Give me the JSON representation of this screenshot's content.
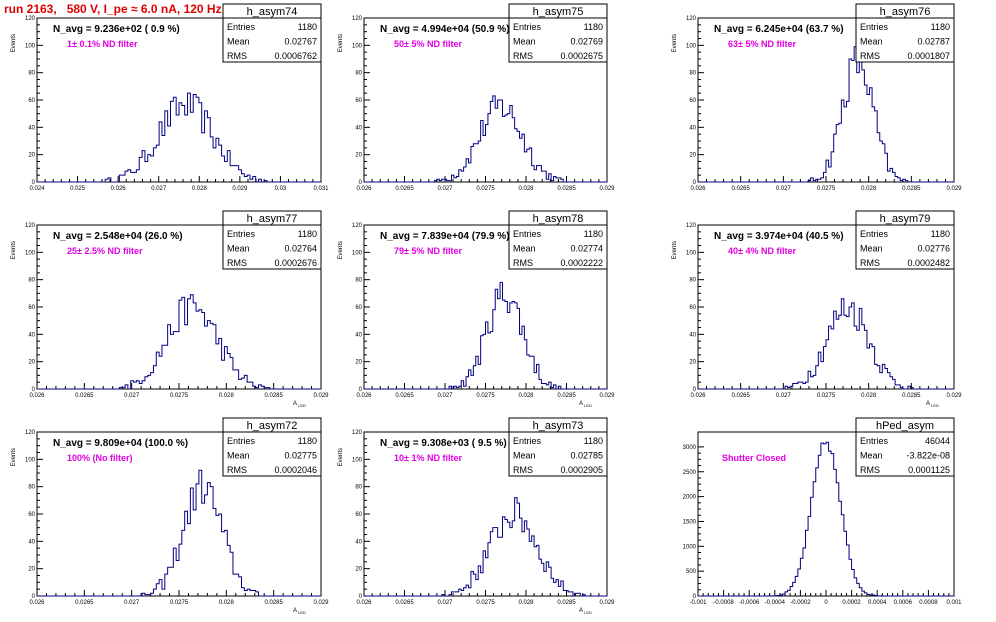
{
  "run_title": "run 2163,   580 V, I_pe ≈ 6.0 nA, 120 Hz",
  "chart_data": [
    {
      "type": "histogram",
      "name": "h_asym74",
      "stats": {
        "entries_label": "Entries",
        "entries": "1180",
        "mean_label": "Mean",
        "mean": "0.02767",
        "rms_label": "RMS",
        "rms": "0.0006762"
      },
      "navg": "N_avg = 9.236e+02 ( 0.9 %)",
      "filter": "1± 0.1% ND filter",
      "ylabel": "Events",
      "xlabel": "",
      "xlim": [
        0.024,
        0.031
      ],
      "ylim": [
        0,
        120
      ],
      "xticks": [
        "0.024",
        "0.025",
        "0.026",
        "0.027",
        "0.028",
        "0.029",
        "0.03",
        "0.031"
      ],
      "xtick_values": [
        0.024,
        0.025,
        0.026,
        0.027,
        0.028,
        0.029,
        0.03,
        0.031
      ],
      "yticks": [
        "0",
        "20",
        "40",
        "60",
        "80",
        "100",
        "120"
      ],
      "ytick_values": [
        0,
        20,
        40,
        60,
        80,
        100,
        120
      ],
      "mean_value": 0.02767,
      "rms_value": 0.0006762,
      "peak": 56
    },
    {
      "type": "histogram",
      "name": "h_asym75",
      "stats": {
        "entries_label": "Entries",
        "entries": "1180",
        "mean_label": "Mean",
        "mean": "0.02769",
        "rms_label": "RMS",
        "rms": "0.0002675"
      },
      "navg": "N_avg = 4.994e+04 (50.9 %)",
      "filter": "50± 5% ND filter",
      "ylabel": "Events",
      "xlabel": "",
      "xlim": [
        0.026,
        0.029
      ],
      "ylim": [
        0,
        120
      ],
      "xticks": [
        "0.026",
        "0.0265",
        "0.027",
        "0.0275",
        "0.028",
        "0.0285",
        "0.029"
      ],
      "xtick_values": [
        0.026,
        0.0265,
        0.027,
        0.0275,
        0.028,
        0.0285,
        0.029
      ],
      "yticks": [
        "0",
        "20",
        "40",
        "60",
        "80",
        "100",
        "120"
      ],
      "ytick_values": [
        0,
        20,
        40,
        60,
        80,
        100,
        120
      ],
      "mean_value": 0.02769,
      "rms_value": 0.0002675,
      "peak": 55
    },
    {
      "type": "histogram",
      "name": "h_asym76",
      "stats": {
        "entries_label": "Entries",
        "entries": "1180",
        "mean_label": "Mean",
        "mean": "0.02787",
        "rms_label": "RMS",
        "rms": "0.0001807"
      },
      "navg": "N_avg = 6.245e+04 (63.7 %)",
      "filter": "63± 5% ND filter",
      "ylabel": "Events",
      "xlabel": "",
      "xlim": [
        0.026,
        0.029
      ],
      "ylim": [
        0,
        120
      ],
      "xticks": [
        "0.026",
        "0.0265",
        "0.027",
        "0.0275",
        "0.028",
        "0.0285",
        "0.029"
      ],
      "xtick_values": [
        0.026,
        0.0265,
        0.027,
        0.0275,
        0.028,
        0.0285,
        0.029
      ],
      "yticks": [
        "0",
        "20",
        "40",
        "60",
        "80",
        "100",
        "120"
      ],
      "ytick_values": [
        0,
        20,
        40,
        60,
        80,
        100,
        120
      ],
      "mean_value": 0.02787,
      "rms_value": 0.0001807,
      "peak": 88
    },
    {
      "type": "histogram",
      "name": "h_asym77",
      "stats": {
        "entries_label": "Entries",
        "entries": "1180",
        "mean_label": "Mean",
        "mean": "0.02764",
        "rms_label": "RMS",
        "rms": "0.0002676"
      },
      "navg": "N_avg = 2.548e+04 (26.0 %)",
      "filter": "25± 2.5% ND filter",
      "ylabel": "Events",
      "xlabel": "A_LED",
      "xlim": [
        0.026,
        0.029
      ],
      "ylim": [
        0,
        120
      ],
      "xticks": [
        "0.026",
        "0.0265",
        "0.027",
        "0.0275",
        "0.028",
        "0.0285",
        "0.029"
      ],
      "xtick_values": [
        0.026,
        0.0265,
        0.027,
        0.0275,
        0.028,
        0.0285,
        0.029
      ],
      "yticks": [
        "0",
        "20",
        "40",
        "60",
        "80",
        "100",
        "120"
      ],
      "ytick_values": [
        0,
        20,
        40,
        60,
        80,
        100,
        120
      ],
      "mean_value": 0.02764,
      "rms_value": 0.0002676,
      "peak": 60
    },
    {
      "type": "histogram",
      "name": "h_asym78",
      "stats": {
        "entries_label": "Entries",
        "entries": "1180",
        "mean_label": "Mean",
        "mean": "0.02774",
        "rms_label": "RMS",
        "rms": "0.0002222"
      },
      "navg": "N_avg = 7.839e+04 (79.9 %)",
      "filter": "79± 5% ND filter",
      "ylabel": "Events",
      "xlabel": "A_LED",
      "xlim": [
        0.026,
        0.029
      ],
      "ylim": [
        0,
        120
      ],
      "xticks": [
        "0.026",
        "0.0265",
        "0.027",
        "0.0275",
        "0.028",
        "0.0285",
        "0.029"
      ],
      "xtick_values": [
        0.026,
        0.0265,
        0.027,
        0.0275,
        0.028,
        0.0285,
        0.029
      ],
      "yticks": [
        "0",
        "20",
        "40",
        "60",
        "80",
        "100",
        "120"
      ],
      "ytick_values": [
        0,
        20,
        40,
        60,
        80,
        100,
        120
      ],
      "mean_value": 0.02774,
      "rms_value": 0.0002222,
      "peak": 70
    },
    {
      "type": "histogram",
      "name": "h_asym79",
      "stats": {
        "entries_label": "Entries",
        "entries": "1180",
        "mean_label": "Mean",
        "mean": "0.02776",
        "rms_label": "RMS",
        "rms": "0.0002482"
      },
      "navg": "N_avg = 3.974e+04 (40.5 %)",
      "filter": "40± 4% ND filter",
      "ylabel": "Events",
      "xlabel": "A_LED",
      "xlim": [
        0.026,
        0.029
      ],
      "ylim": [
        0,
        120
      ],
      "xticks": [
        "0.026",
        "0.0265",
        "0.027",
        "0.0275",
        "0.028",
        "0.0285",
        "0.029"
      ],
      "xtick_values": [
        0.026,
        0.0265,
        0.027,
        0.0275,
        0.028,
        0.0285,
        0.029
      ],
      "yticks": [
        "0",
        "20",
        "40",
        "60",
        "80",
        "100",
        "120"
      ],
      "ytick_values": [
        0,
        20,
        40,
        60,
        80,
        100,
        120
      ],
      "mean_value": 0.02776,
      "rms_value": 0.0002482,
      "peak": 60
    },
    {
      "type": "histogram",
      "name": "h_asym72",
      "stats": {
        "entries_label": "Entries",
        "entries": "1180",
        "mean_label": "Mean",
        "mean": "0.02775",
        "rms_label": "RMS",
        "rms": "0.0002046"
      },
      "navg": "N_avg = 9.809e+04 (100.0 %)",
      "filter": "100% (No filter)",
      "ylabel": "Events",
      "xlabel": "A_LED",
      "xlim": [
        0.026,
        0.029
      ],
      "ylim": [
        0,
        120
      ],
      "xticks": [
        "0.026",
        "0.0265",
        "0.027",
        "0.0275",
        "0.028",
        "0.0285",
        "0.029"
      ],
      "xtick_values": [
        0.026,
        0.0265,
        0.027,
        0.0275,
        0.028,
        0.0285,
        0.029
      ],
      "yticks": [
        "0",
        "20",
        "40",
        "60",
        "80",
        "100",
        "120"
      ],
      "ytick_values": [
        0,
        20,
        40,
        60,
        80,
        100,
        120
      ],
      "mean_value": 0.02775,
      "rms_value": 0.0002046,
      "peak": 80
    },
    {
      "type": "histogram",
      "name": "h_asym73",
      "stats": {
        "entries_label": "Entries",
        "entries": "1180",
        "mean_label": "Mean",
        "mean": "0.02785",
        "rms_label": "RMS",
        "rms": "0.0002905"
      },
      "navg": "N_avg = 9.308e+03 ( 9.5 %)",
      "filter": "10± 1% ND filter",
      "ylabel": "Events",
      "xlabel": "A_LED",
      "xlim": [
        0.026,
        0.029
      ],
      "ylim": [
        0,
        120
      ],
      "xticks": [
        "0.026",
        "0.0265",
        "0.027",
        "0.0275",
        "0.028",
        "0.0285",
        "0.029"
      ],
      "xtick_values": [
        0.026,
        0.0265,
        0.027,
        0.0275,
        0.028,
        0.0285,
        0.029
      ],
      "yticks": [
        "0",
        "20",
        "40",
        "60",
        "80",
        "100",
        "120"
      ],
      "ytick_values": [
        0,
        20,
        40,
        60,
        80,
        100,
        120
      ],
      "mean_value": 0.02785,
      "rms_value": 0.0002905,
      "peak": 60
    },
    {
      "type": "histogram",
      "name": "hPed_asym",
      "stats": {
        "entries_label": "Entries",
        "entries": "46044",
        "mean_label": "Mean",
        "mean": "-3.822e-08",
        "rms_label": "RMS",
        "rms": "0.0001125"
      },
      "navg": "",
      "filter": "Shutter Closed",
      "ylabel": "",
      "xlabel": "",
      "xlim": [
        -0.001,
        0.001
      ],
      "ylim": [
        0,
        3300
      ],
      "xticks": [
        "-0.001",
        "-0.0008",
        "-0.0006",
        "-0.0004",
        "-0.0002",
        "0",
        "0.0002",
        "0.0004",
        "0.0006",
        "0.0008",
        "0.001"
      ],
      "xtick_values": [
        -0.001,
        -0.0008,
        -0.0006,
        -0.0004,
        -0.0002,
        0,
        0.0002,
        0.0004,
        0.0006,
        0.0008,
        0.001
      ],
      "yticks": [
        "0",
        "500",
        "1000",
        "1500",
        "2000",
        "2500",
        "3000"
      ],
      "ytick_values": [
        0,
        500,
        1000,
        1500,
        2000,
        2500,
        3000
      ],
      "mean_value": -3.822e-08,
      "rms_value": 0.0001125,
      "peak": 3100
    }
  ]
}
